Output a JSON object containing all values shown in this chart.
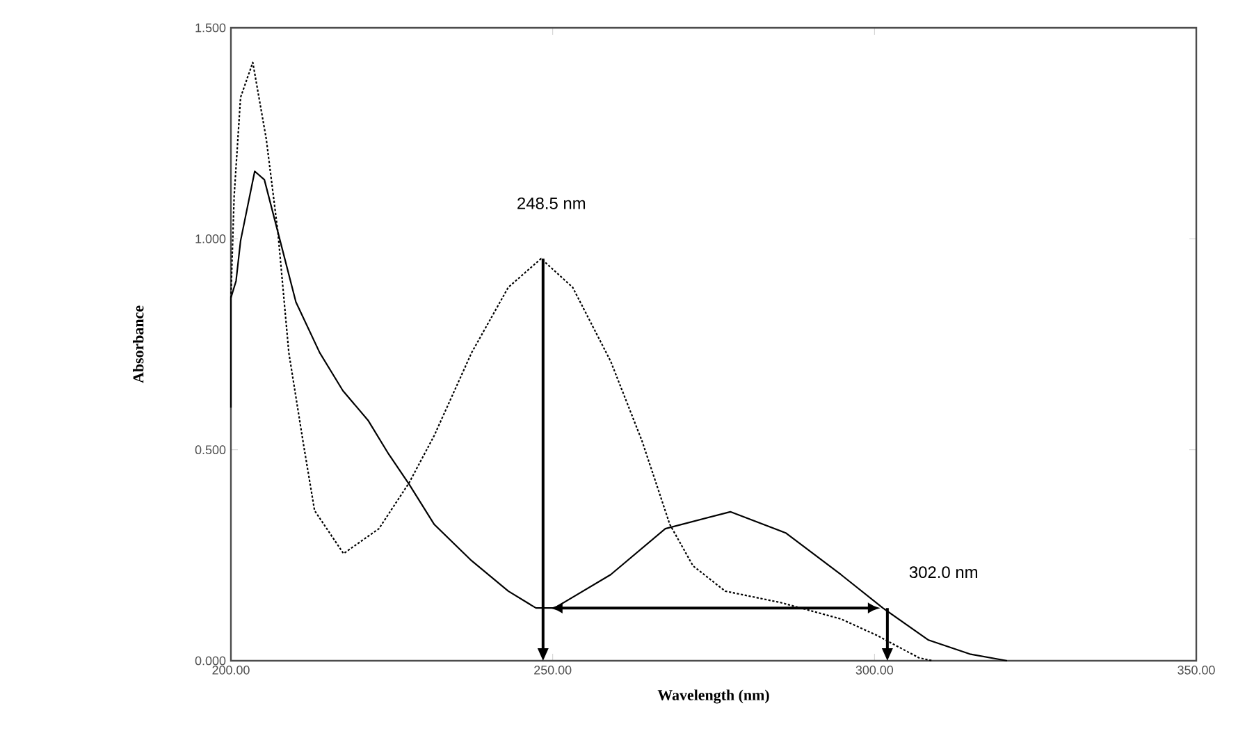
{
  "chart_data": {
    "type": "line",
    "xlabel": "Wavelength (nm)",
    "ylabel": "Absorbance",
    "xlim": [
      200,
      350
    ],
    "ylim": [
      0,
      1.5
    ],
    "xticks": [
      {
        "value": 200,
        "label": "200.00"
      },
      {
        "value": 250,
        "label": "250.00"
      },
      {
        "value": 300,
        "label": "300.00"
      },
      {
        "value": 350,
        "label": "350.00"
      }
    ],
    "yticks": [
      {
        "value": 0,
        "label": "0.000"
      },
      {
        "value": 0.5,
        "label": "0.500"
      },
      {
        "value": 1,
        "label": "1.000"
      },
      {
        "value": 1.5,
        "label": "1.500"
      }
    ],
    "grid": false,
    "legend": false,
    "marker": "none",
    "series": [
      {
        "color": "#000000",
        "line_style": "dotted",
        "x": [
          200,
          200.5,
          201.5,
          203.4,
          205.5,
          207.3,
          209,
          211.2,
          213,
          217.5,
          223,
          227.7,
          231.6,
          237.4,
          243.1,
          248.2,
          253.1,
          259,
          263.9,
          268.2,
          271.8,
          276.8,
          285.4,
          294.8,
          300.4,
          306.9,
          309
        ],
        "values": [
          0.86,
          1.1,
          1.335,
          1.418,
          1.236,
          1.016,
          0.73,
          0.52,
          0.356,
          0.254,
          0.313,
          0.422,
          0.534,
          0.73,
          0.885,
          0.953,
          0.885,
          0.71,
          0.52,
          0.323,
          0.225,
          0.165,
          0.138,
          0.099,
          0.06,
          0.007,
          0
        ]
      },
      {
        "color": "#000000",
        "line_style": "solid",
        "x": [
          200,
          200,
          200.8,
          201.5,
          203.7,
          205.2,
          207.3,
          210.1,
          213.8,
          217.4,
          221.3,
          224.5,
          227.7,
          231.6,
          237.4,
          243.1,
          247.4,
          250.3,
          259,
          267.5,
          277.6,
          286.2,
          294.8,
          301.3,
          308.4,
          314.8,
          320.6
        ],
        "values": [
          0.6,
          0.86,
          0.9,
          0.995,
          1.16,
          1.14,
          1.016,
          0.85,
          0.73,
          0.64,
          0.57,
          0.49,
          0.418,
          0.323,
          0.237,
          0.165,
          0.125,
          0.125,
          0.204,
          0.313,
          0.353,
          0.303,
          0.204,
          0.125,
          0.049,
          0.016,
          0
        ]
      }
    ],
    "annotations": [
      {
        "text": "248.5 nm",
        "x": 248.5,
        "y": 0.953
      },
      {
        "text": "302.0 nm",
        "x": 302,
        "y": 0.125
      }
    ]
  }
}
